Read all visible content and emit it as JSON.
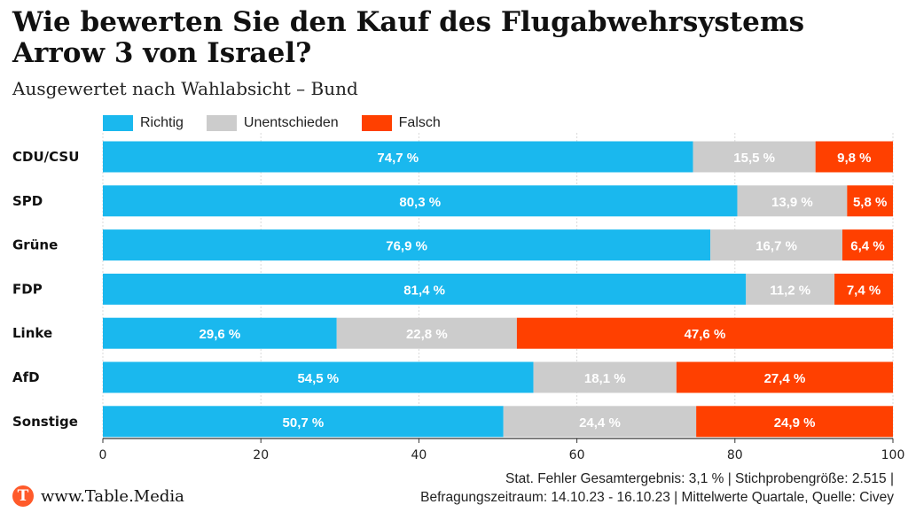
{
  "header": {
    "title": "Wie bewerten Sie den Kauf des Flugabwehrsystems Arrow 3 von Israel?",
    "subtitle": "Ausgewertet nach Wahlabsicht – Bund"
  },
  "footer": {
    "brand": "www.Table.Media",
    "logo_letter": "T",
    "note_line1": "Stat. Fehler Gesamtergebnis: 3,1 % | Stichprobengröße: 2.515 |",
    "note_line2": "Befragungszeitraum: 14.10.23 - 16.10.23 | Mittelwerte Quartale, Quelle: Civey"
  },
  "colors": {
    "richtig": "#1ab8ee",
    "unentschieden": "#cccccc",
    "falsch": "#ff4000",
    "logo": "#ff5a2a"
  },
  "chart_data": {
    "type": "bar",
    "orientation": "horizontal",
    "stacked": true,
    "categories": [
      "CDU/CSU",
      "SPD",
      "Grüne",
      "FDP",
      "Linke",
      "AfD",
      "Sonstige"
    ],
    "series": [
      {
        "name": "Richtig",
        "values": [
          74.7,
          80.3,
          76.9,
          81.4,
          29.6,
          54.5,
          50.7
        ],
        "labels": [
          "74,7 %",
          "80,3 %",
          "76,9 %",
          "81,4 %",
          "29,6 %",
          "54,5 %",
          "50,7 %"
        ]
      },
      {
        "name": "Unentschieden",
        "values": [
          15.5,
          13.9,
          16.7,
          11.2,
          22.8,
          18.1,
          24.4
        ],
        "labels": [
          "15,5 %",
          "13,9 %",
          "16,7 %",
          "11,2 %",
          "22,8 %",
          "18,1 %",
          "24,4 %"
        ]
      },
      {
        "name": "Falsch",
        "values": [
          9.8,
          5.8,
          6.4,
          7.4,
          47.6,
          27.4,
          24.9
        ],
        "labels": [
          "9,8 %",
          "5,8 %",
          "6,4 %",
          "7,4 %",
          "47,6 %",
          "27,4 %",
          "24,9 %"
        ]
      }
    ],
    "xlim": [
      0,
      100
    ],
    "xticks": [
      "0",
      "20",
      "40",
      "60",
      "80",
      "100"
    ],
    "grid": true,
    "legend": "top-left"
  }
}
